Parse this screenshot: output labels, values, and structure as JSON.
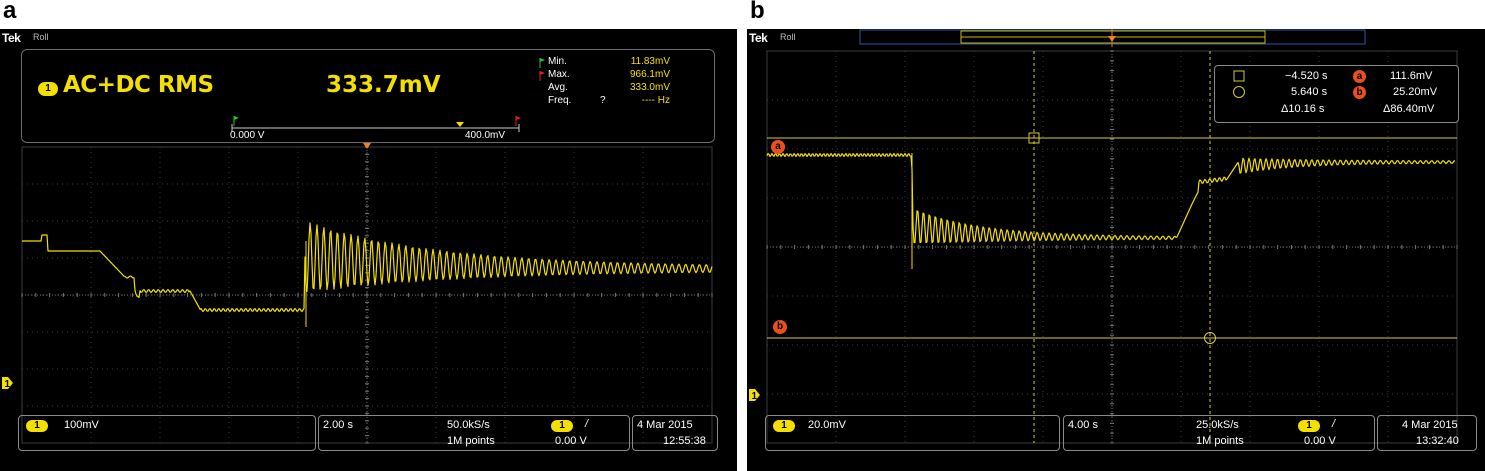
{
  "panel_a": {
    "letter": "a",
    "logo": "Tek",
    "mode": "Roll",
    "measurement": {
      "channel": "1",
      "name": "AC+DC RMS",
      "value": "333.7mV",
      "min_label": "Min.",
      "min_value": "11.83mV",
      "max_label": "Max.",
      "max_value": "966.1mV",
      "avg_label": "Avg.",
      "avg_value": "333.0mV",
      "freq_label": "Freq.",
      "freq_flag": "?",
      "freq_value": "---- Hz",
      "range_start": "0.000 V",
      "range_end": "400.0mV"
    },
    "channel_indicator": "1",
    "status": {
      "channel": "1",
      "vertical_scale": "100mV",
      "time_scale": "2.00 s",
      "sample_rate": "50.0kS/s",
      "record_length": "1M points",
      "trigger_channel": "1",
      "trigger_slope": "/",
      "trigger_level": "0.00 V",
      "date": "4 Mar  2015",
      "time": "12:55:38"
    },
    "trace_color": "#f4e000"
  },
  "panel_b": {
    "letter": "b",
    "logo": "Tek",
    "mode": "Roll",
    "cursors": {
      "a_label": "a",
      "b_label": "b",
      "t_a": "−4.520 s",
      "v_a": "111.6mV",
      "t_b": "5.640 s",
      "v_b": "25.20mV",
      "dt": "Δ10.16 s",
      "dv": "Δ86.40mV"
    },
    "channel_indicator": "1",
    "status": {
      "channel": "1",
      "vertical_scale": "20.0mV",
      "time_scale": "4.00 s",
      "sample_rate": "25.0kS/s",
      "record_length": "1M points",
      "trigger_channel": "1",
      "trigger_slope": "/",
      "trigger_level": "0.00 V",
      "date": "4 Mar  2015",
      "time": "13:32:40"
    },
    "trace_color": "#f4e000",
    "cursor_color": "#d8cc3a",
    "marker_color": "#e8501e"
  }
}
